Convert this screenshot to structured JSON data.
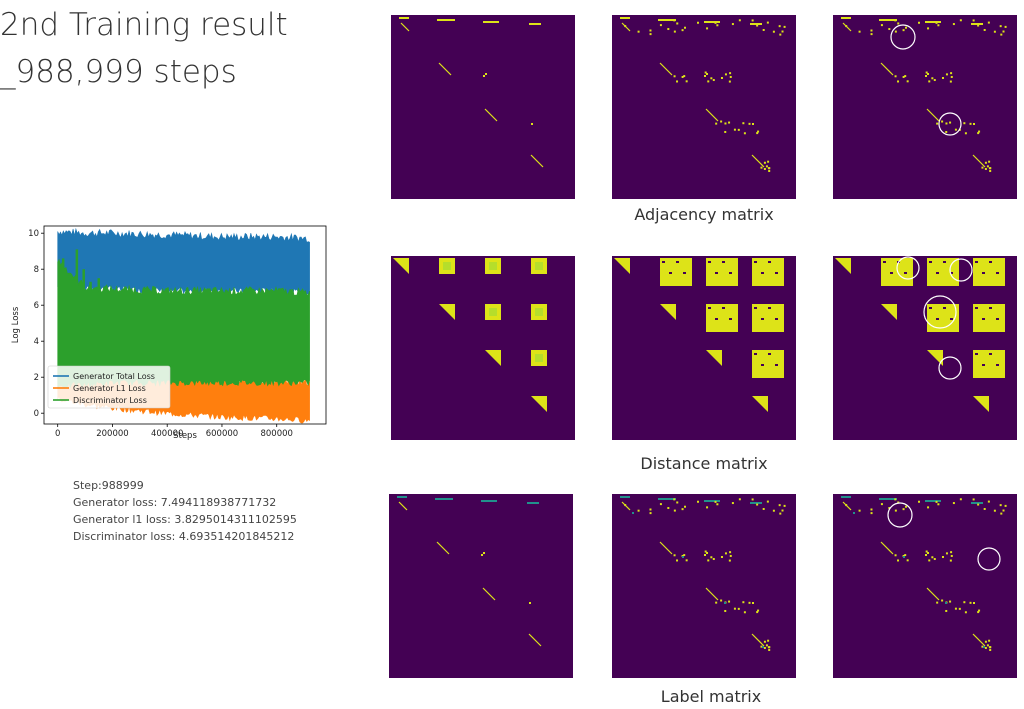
{
  "page": {
    "title_line1": "2nd Training result",
    "title_line2": "_988,999 steps"
  },
  "stats": {
    "step": "Step:988999",
    "generator_loss": "Generator loss: 7.494118938771732",
    "generator_l1_loss": "Generator l1 loss: 3.8295014311102595",
    "discriminator_loss": "Discriminator loss: 4.693514201845212"
  },
  "captions": {
    "adjacency": "Adjacency matrix",
    "distance": "Distance matrix",
    "label": "Label matrix"
  },
  "colors": {
    "matrix_bg": "#440154",
    "matrix_fg": "#dde318",
    "matrix_mid": "#21918c",
    "series_total": "#1f77b4",
    "series_l1": "#ff7f0e",
    "series_disc": "#2ca02c"
  },
  "chart_data": {
    "type": "area",
    "xlabel": "Steps",
    "ylabel": "Log Loss",
    "xlim": [
      -50000,
      980000
    ],
    "ylim": [
      -0.6,
      10.4
    ],
    "xticks": [
      0,
      200000,
      400000,
      600000,
      800000
    ],
    "yticks": [
      0,
      2,
      4,
      6,
      8,
      10
    ],
    "legend_position": "bottom-left",
    "series": [
      {
        "name": "Generator Total Loss",
        "color": "#1f77b4",
        "x": [
          0,
          100000,
          200000,
          400000,
          600000,
          800000,
          920000
        ],
        "low": [
          7.0,
          6.9,
          6.9,
          6.8,
          6.8,
          6.8,
          6.7
        ],
        "high": [
          10.1,
          10.0,
          10.0,
          9.9,
          9.8,
          9.8,
          9.7
        ]
      },
      {
        "name": "Generator L1 Loss",
        "color": "#ff7f0e",
        "x": [
          0,
          100000,
          200000,
          400000,
          600000,
          800000,
          920000
        ],
        "low": [
          0.8,
          0.5,
          0.3,
          0.0,
          -0.2,
          -0.3,
          -0.4
        ],
        "high": [
          2.5,
          2.3,
          2.2,
          2.0,
          1.9,
          1.8,
          1.7
        ]
      },
      {
        "name": "Discriminator Loss",
        "color": "#2ca02c",
        "x": [
          0,
          100000,
          200000,
          400000,
          600000,
          800000,
          920000
        ],
        "low": [
          1.5,
          1.6,
          1.7,
          1.7,
          1.7,
          1.7,
          1.7
        ],
        "high": [
          8.5,
          7.0,
          6.9,
          6.8,
          6.8,
          6.8,
          6.7
        ]
      }
    ]
  },
  "matrices": [
    {
      "name": "adjacency-input"
    },
    {
      "name": "adjacency-target"
    },
    {
      "name": "adjacency-output"
    },
    {
      "name": "distance-input"
    },
    {
      "name": "distance-target"
    },
    {
      "name": "distance-output"
    },
    {
      "name": "label-input"
    },
    {
      "name": "label-target"
    },
    {
      "name": "label-output"
    }
  ]
}
